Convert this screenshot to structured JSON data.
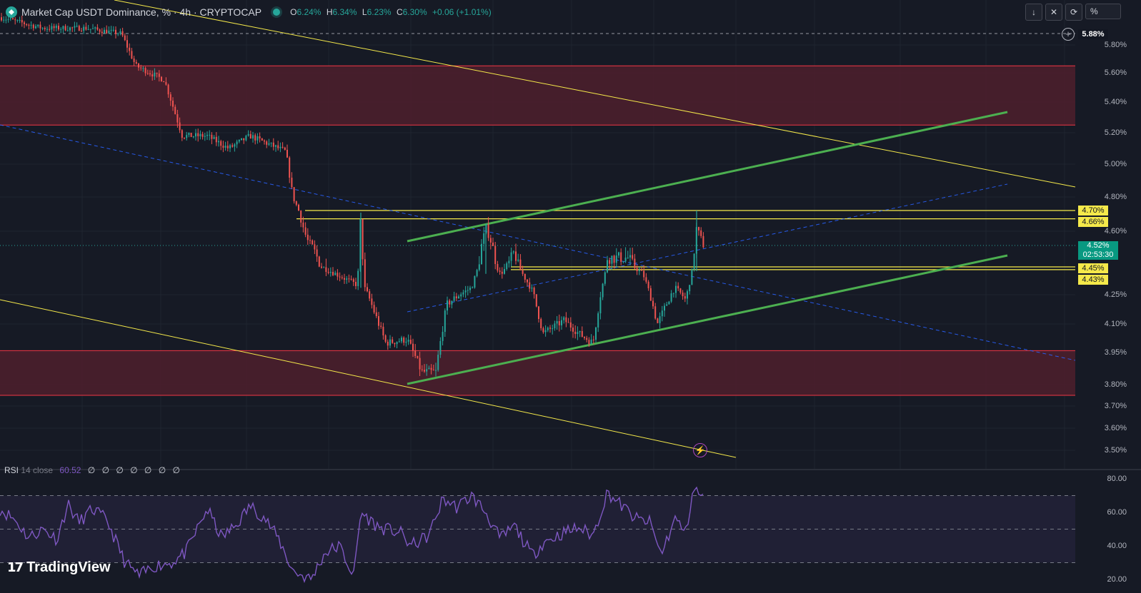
{
  "legend": {
    "title": "Market Cap USDT Dominance, % · 4h · CRYPTOCAP",
    "open_label": "O",
    "open_value": "6.24%",
    "high_label": "H",
    "high_value": "6.34%",
    "low_label": "L",
    "low_value": "6.23%",
    "close_label": "C",
    "close_value": "6.30%",
    "change": "+0.06 (+1.01%)",
    "logo_icon": "tether-diamond-icon"
  },
  "toolbar": {
    "unit": "%",
    "icons": [
      "arrow-down-icon",
      "collapse-icon",
      "loop-icon"
    ]
  },
  "price_axis": {
    "labels": [
      "5.80%",
      "5.60%",
      "5.40%",
      "5.20%",
      "5.00%",
      "4.80%",
      "4.60%",
      "4.25%",
      "4.10%",
      "3.95%",
      "3.80%",
      "3.70%",
      "3.60%",
      "3.50%"
    ],
    "crosshair_price": "5.88%",
    "current_price": "4.52%",
    "countdown": "02:53:30",
    "level_tags": [
      "4.70%",
      "4.66%",
      "4.45%",
      "4.43%"
    ]
  },
  "rsi": {
    "name": "RSI",
    "params": "14 close",
    "value": "60.52",
    "slots": "∅ ∅ ∅ ∅ ∅ ∅ ∅",
    "axis_labels": [
      "80.00",
      "60.00",
      "40.00",
      "20.00"
    ]
  },
  "branding": {
    "name": "TradingView"
  },
  "colors": {
    "background": "#161a25",
    "grid": "#1f2430",
    "up": "#26a69a",
    "down": "#ef5350",
    "zone_fill": "#4a1f2c",
    "zone_border": "#f23645",
    "yellow_line": "#f5e94a",
    "green_trend": "#4caf50",
    "blue_dashed": "#2962ff",
    "rsi_line": "#7e57c2"
  },
  "chart_data": {
    "type": "candlestick",
    "timeframe": "4h",
    "ylim": [
      3.47,
      5.92
    ],
    "series_path": [
      [
        0,
        6.0
      ],
      [
        60,
        5.92
      ],
      [
        120,
        5.92
      ],
      [
        170,
        5.88
      ],
      [
        190,
        5.65
      ],
      [
        230,
        5.55
      ],
      [
        255,
        5.18
      ],
      [
        290,
        5.18
      ],
      [
        320,
        5.1
      ],
      [
        350,
        5.18
      ],
      [
        400,
        5.08
      ],
      [
        410,
        4.8
      ],
      [
        430,
        4.55
      ],
      [
        450,
        4.45
      ],
      [
        470,
        4.4
      ],
      [
        500,
        4.32
      ],
      [
        505,
        4.69
      ],
      [
        510,
        4.3
      ],
      [
        540,
        4.0
      ],
      [
        570,
        4.02
      ],
      [
        590,
        3.86
      ],
      [
        610,
        3.86
      ],
      [
        625,
        4.2
      ],
      [
        660,
        4.3
      ],
      [
        680,
        4.62
      ],
      [
        700,
        4.4
      ],
      [
        720,
        4.5
      ],
      [
        745,
        4.28
      ],
      [
        760,
        4.05
      ],
      [
        790,
        4.12
      ],
      [
        810,
        4.05
      ],
      [
        830,
        4.0
      ],
      [
        850,
        4.48
      ],
      [
        880,
        4.48
      ],
      [
        900,
        4.4
      ],
      [
        920,
        4.1
      ],
      [
        945,
        4.3
      ],
      [
        960,
        4.22
      ],
      [
        970,
        4.45
      ],
      [
        975,
        4.62
      ],
      [
        985,
        4.52
      ]
    ],
    "zones": [
      {
        "top": 5.65,
        "bottom": 5.25
      },
      {
        "top": 3.96,
        "bottom": 3.75
      }
    ],
    "horizontal_levels": [
      4.7,
      4.66,
      4.45,
      4.43
    ],
    "rsi_values": [
      [
        0,
        62
      ],
      [
        20,
        56
      ],
      [
        40,
        45
      ],
      [
        60,
        50
      ],
      [
        80,
        44
      ],
      [
        95,
        65
      ],
      [
        110,
        54
      ],
      [
        130,
        62
      ],
      [
        150,
        55
      ],
      [
        175,
        30
      ],
      [
        195,
        22
      ],
      [
        215,
        28
      ],
      [
        240,
        30
      ],
      [
        260,
        36
      ],
      [
        290,
        62
      ],
      [
        310,
        45
      ],
      [
        330,
        52
      ],
      [
        350,
        64
      ],
      [
        370,
        57
      ],
      [
        390,
        44
      ],
      [
        410,
        25
      ],
      [
        435,
        20
      ],
      [
        455,
        36
      ],
      [
        475,
        40
      ],
      [
        495,
        22
      ],
      [
        505,
        60
      ],
      [
        530,
        51
      ],
      [
        560,
        48
      ],
      [
        575,
        40
      ],
      [
        600,
        46
      ],
      [
        620,
        68
      ],
      [
        640,
        63
      ],
      [
        660,
        70
      ],
      [
        680,
        60
      ],
      [
        700,
        44
      ],
      [
        720,
        52
      ],
      [
        745,
        34
      ],
      [
        760,
        42
      ],
      [
        790,
        48
      ],
      [
        810,
        51
      ],
      [
        830,
        46
      ],
      [
        850,
        72
      ],
      [
        870,
        64
      ],
      [
        890,
        56
      ],
      [
        910,
        54
      ],
      [
        925,
        35
      ],
      [
        945,
        56
      ],
      [
        960,
        48
      ],
      [
        970,
        74
      ],
      [
        985,
        69
      ]
    ]
  }
}
